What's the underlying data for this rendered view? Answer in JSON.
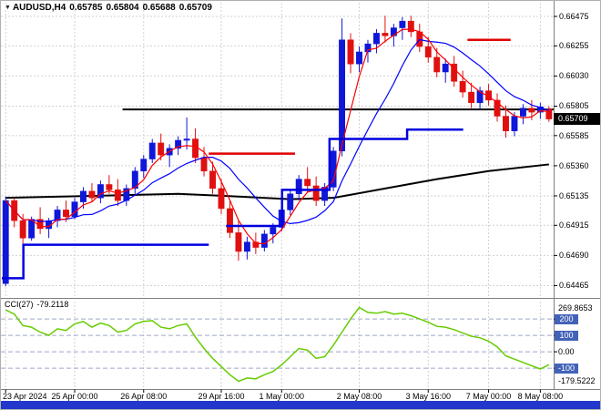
{
  "chart_data": {
    "type": "candlestick",
    "title": "AUDUSD,H4",
    "header": {
      "marker": "▼",
      "symbol": "AUDUSD,H4",
      "open": "0.65785",
      "high": "0.65804",
      "low": "0.65688",
      "close": "0.65709"
    },
    "price_axis": {
      "labels": [
        "0.66475",
        "0.66255",
        "0.66030",
        "0.65805",
        "0.65585",
        "0.65360",
        "0.65135",
        "0.64915",
        "0.64690",
        "0.64465"
      ],
      "current_price": "0.65709",
      "range": [
        0.644,
        0.6655
      ]
    },
    "time_axis": {
      "labels": [
        {
          "i": 0,
          "text": "23 Apr 2024"
        },
        {
          "i": 8,
          "text": "25 Apr 00:00"
        },
        {
          "i": 16,
          "text": "26 Apr 08:00"
        },
        {
          "i": 25,
          "text": "29 Apr 16:00"
        },
        {
          "i": 32,
          "text": "1 May 00:00"
        },
        {
          "i": 41,
          "text": "2 May 08:00"
        },
        {
          "i": 49,
          "text": "3 May 16:00"
        },
        {
          "i": 56,
          "text": "7 May 00:00"
        },
        {
          "i": 62,
          "text": "8 May 08:00"
        }
      ]
    },
    "candles": [
      [
        0.6448,
        0.6513,
        0.6446,
        0.651
      ],
      [
        0.651,
        0.6512,
        0.649,
        0.6495
      ],
      [
        0.6495,
        0.65,
        0.6478,
        0.6482
      ],
      [
        0.6482,
        0.6498,
        0.648,
        0.6496
      ],
      [
        0.6496,
        0.6505,
        0.6485,
        0.6489
      ],
      [
        0.6489,
        0.6497,
        0.6482,
        0.6495
      ],
      [
        0.6495,
        0.6506,
        0.649,
        0.6503
      ],
      [
        0.6503,
        0.651,
        0.6494,
        0.6498
      ],
      [
        0.6498,
        0.6512,
        0.6496,
        0.6509
      ],
      [
        0.6509,
        0.652,
        0.6504,
        0.6517
      ],
      [
        0.6517,
        0.6523,
        0.6509,
        0.6512
      ],
      [
        0.6512,
        0.6525,
        0.6508,
        0.6522
      ],
      [
        0.6522,
        0.6529,
        0.6515,
        0.6518
      ],
      [
        0.6518,
        0.6526,
        0.6506,
        0.651
      ],
      [
        0.651,
        0.6522,
        0.6506,
        0.6519
      ],
      [
        0.6519,
        0.6535,
        0.6515,
        0.6532
      ],
      [
        0.6532,
        0.6544,
        0.6527,
        0.6541
      ],
      [
        0.6541,
        0.6556,
        0.6538,
        0.6553
      ],
      [
        0.6553,
        0.656,
        0.654,
        0.6544
      ],
      [
        0.6544,
        0.6552,
        0.6535,
        0.6549
      ],
      [
        0.6549,
        0.6558,
        0.6544,
        0.6555
      ],
      [
        0.6555,
        0.6572,
        0.6548,
        0.6556
      ],
      [
        0.6556,
        0.6564,
        0.6538,
        0.6542
      ],
      [
        0.6542,
        0.655,
        0.6528,
        0.6532
      ],
      [
        0.6532,
        0.6539,
        0.6515,
        0.6519
      ],
      [
        0.6519,
        0.6526,
        0.65,
        0.6504
      ],
      [
        0.6504,
        0.651,
        0.6482,
        0.6486
      ],
      [
        0.6486,
        0.6495,
        0.6465,
        0.6472
      ],
      [
        0.6472,
        0.6483,
        0.6466,
        0.6479
      ],
      [
        0.6479,
        0.6486,
        0.647,
        0.6475
      ],
      [
        0.6475,
        0.6488,
        0.6472,
        0.6485
      ],
      [
        0.6485,
        0.6493,
        0.6478,
        0.649
      ],
      [
        0.649,
        0.6506,
        0.6487,
        0.6503
      ],
      [
        0.6503,
        0.6518,
        0.6499,
        0.6515
      ],
      [
        0.6515,
        0.6529,
        0.651,
        0.6526
      ],
      [
        0.6526,
        0.6535,
        0.6516,
        0.6521
      ],
      [
        0.6521,
        0.6528,
        0.6506,
        0.651
      ],
      [
        0.651,
        0.6523,
        0.6506,
        0.652
      ],
      [
        0.652,
        0.655,
        0.6517,
        0.6547
      ],
      [
        0.6547,
        0.6646,
        0.6543,
        0.663
      ],
      [
        0.663,
        0.6635,
        0.6605,
        0.6612
      ],
      [
        0.6612,
        0.6625,
        0.6606,
        0.6621
      ],
      [
        0.6621,
        0.663,
        0.6613,
        0.6627
      ],
      [
        0.6627,
        0.6638,
        0.662,
        0.6635
      ],
      [
        0.6635,
        0.6648,
        0.6628,
        0.6633
      ],
      [
        0.6633,
        0.6642,
        0.6625,
        0.6639
      ],
      [
        0.6639,
        0.6647,
        0.663,
        0.6644
      ],
      [
        0.6644,
        0.6648,
        0.6632,
        0.6636
      ],
      [
        0.6636,
        0.6642,
        0.6621,
        0.6625
      ],
      [
        0.6625,
        0.6632,
        0.6613,
        0.6617
      ],
      [
        0.6617,
        0.6624,
        0.6602,
        0.6606
      ],
      [
        0.6606,
        0.6616,
        0.6598,
        0.6612
      ],
      [
        0.6612,
        0.6618,
        0.6595,
        0.6599
      ],
      [
        0.6599,
        0.6607,
        0.6587,
        0.6591
      ],
      [
        0.6591,
        0.6598,
        0.6579,
        0.6583
      ],
      [
        0.6583,
        0.6595,
        0.6578,
        0.6592
      ],
      [
        0.6592,
        0.6597,
        0.6581,
        0.6585
      ],
      [
        0.6585,
        0.659,
        0.6569,
        0.6573
      ],
      [
        0.6573,
        0.6581,
        0.6557,
        0.6562
      ],
      [
        0.6562,
        0.6576,
        0.6558,
        0.6573
      ],
      [
        0.6573,
        0.6582,
        0.6567,
        0.6579
      ],
      [
        0.6579,
        0.6585,
        0.657,
        0.6576
      ],
      [
        0.6576,
        0.6583,
        0.6571,
        0.658
      ],
      [
        0.65785,
        0.65804,
        0.65688,
        0.65709
      ]
    ],
    "overlays": {
      "ma_fast_period": 4,
      "ma_mid_period": 10,
      "ma_slow_points": [
        {
          "i": 0,
          "p": 0.6512
        },
        {
          "i": 10,
          "p": 0.65135
        },
        {
          "i": 20,
          "p": 0.6515
        },
        {
          "i": 27,
          "p": 0.6513
        },
        {
          "i": 33,
          "p": 0.6511
        },
        {
          "i": 38,
          "p": 0.6512
        },
        {
          "i": 44,
          "p": 0.6519
        },
        {
          "i": 50,
          "p": 0.6526
        },
        {
          "i": 56,
          "p": 0.6532
        },
        {
          "i": 63,
          "p": 0.6537
        }
      ],
      "support_steps_blue": [
        [
          [
            0,
            0.6452
          ],
          [
            2.5,
            0.6452
          ],
          [
            2.5,
            0.6477
          ],
          [
            24,
            0.6477
          ]
        ],
        [
          [
            26,
            0.6491
          ],
          [
            32.5,
            0.6491
          ],
          [
            32.5,
            0.6518
          ],
          [
            38,
            0.6518
          ],
          [
            38,
            0.6556
          ],
          [
            47,
            0.6556
          ],
          [
            47,
            0.6563
          ],
          [
            53.5,
            0.6563
          ]
        ]
      ],
      "resistance_segments_red": [
        [
          [
            24,
            0.6545
          ],
          [
            34,
            0.6545
          ]
        ],
        [
          [
            54,
            0.663
          ],
          [
            59,
            0.663
          ]
        ]
      ],
      "hline_black": {
        "i1": 14,
        "i2": 64,
        "price": 0.6578
      }
    },
    "indicator": {
      "name": "CCI(27)",
      "value": "-79.2118",
      "values": [
        255,
        230,
        160,
        150,
        120,
        100,
        140,
        130,
        170,
        185,
        150,
        175,
        160,
        120,
        130,
        170,
        185,
        190,
        150,
        140,
        160,
        170,
        90,
        20,
        -40,
        -90,
        -140,
        -179.5222,
        -160,
        -165,
        -140,
        -120,
        -80,
        -30,
        20,
        10,
        -40,
        -30,
        40,
        120,
        200,
        269.8653,
        240,
        235,
        245,
        230,
        235,
        220,
        200,
        180,
        155,
        150,
        135,
        115,
        95,
        85,
        65,
        30,
        -25,
        -45,
        -65,
        -85,
        -105,
        -79.2118
      ],
      "levels": [
        {
          "text": "200",
          "value": 200,
          "badge": true
        },
        {
          "text": "100",
          "value": 100,
          "badge": true
        },
        {
          "text": "0.00",
          "value": 0,
          "badge": false
        },
        {
          "text": "-100",
          "value": -100,
          "badge": true
        }
      ],
      "max_label": "269.8653",
      "min_label": "-179.5222",
      "range": [
        -205,
        295
      ]
    },
    "style": {
      "bull": "#0f17d8",
      "bear": "#e01010",
      "ma_fast": "#ff0000",
      "ma_mid": "#0000ff",
      "ma_slow": "#000000",
      "support": "#0000e0",
      "resistance": "#e00000",
      "cci": "#66cc00",
      "grid": "#d2d2d2",
      "level_line": "#9fa8c8",
      "badge_bg": "#4263b8",
      "price_badge_bg": "#000000",
      "price_badge_text": "#ffffff",
      "bottom_bar": "#2238cc",
      "separator": "#808080"
    }
  }
}
